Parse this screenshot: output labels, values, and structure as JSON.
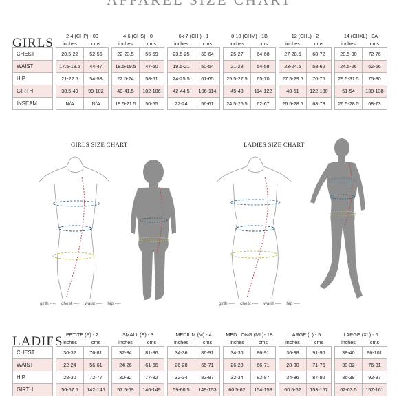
{
  "page_title": "APPAREL SIZE CHART",
  "units": {
    "inches": "inches",
    "cms": "cms"
  },
  "girls": {
    "label": "GIRLS",
    "sizes": [
      "2-4 (CHP) - 00",
      "4-6 (CHS) - 0",
      "6x-7 (CHI) - 1",
      "8-10 (CHM) - 1B",
      "12 (CHL) - 2",
      "14 (CHXL) - 3A"
    ],
    "rows": [
      {
        "label": "CHEST",
        "values": [
          [
            "20.5-22",
            "52-55"
          ],
          [
            "22-23.5",
            "56-59"
          ],
          [
            "23.5-25",
            "60-64"
          ],
          [
            "25-27",
            "64-68"
          ],
          [
            "27-28.5",
            "68-72"
          ],
          [
            "28.5-30",
            "72-76"
          ]
        ]
      },
      {
        "label": "WAIST",
        "values": [
          [
            "17.5-18.5",
            "44-47"
          ],
          [
            "18.5-19.5",
            "47-50"
          ],
          [
            "19.5-21",
            "50-54"
          ],
          [
            "21-23",
            "54-58"
          ],
          [
            "23-24.5",
            "58-62"
          ],
          [
            "24.5-26",
            "62-66"
          ]
        ]
      },
      {
        "label": "HIP",
        "values": [
          [
            "21-22.5",
            "54-58"
          ],
          [
            "22.5-24",
            "58-61"
          ],
          [
            "24-25.5",
            "61-65"
          ],
          [
            "25.5-27.5",
            "65-70"
          ],
          [
            "27.5-29.5",
            "70-75"
          ],
          [
            "29.5-31.5",
            "75-80"
          ]
        ]
      },
      {
        "label": "GIRTH",
        "values": [
          [
            "38.5-40",
            "99-102"
          ],
          [
            "40-41.5",
            "102-106"
          ],
          [
            "42-44.5",
            "106-114"
          ],
          [
            "45-48",
            "114-122"
          ],
          [
            "48-51",
            "122-130"
          ],
          [
            "51-54",
            "130-138"
          ]
        ]
      },
      {
        "label": "INSEAM",
        "values": [
          [
            "N/A",
            "N/A"
          ],
          [
            "19.5-21.5",
            "50-55"
          ],
          [
            "22-24",
            "56-61"
          ],
          [
            "24.5-26.5",
            "62-67"
          ],
          [
            "26.5-28.5",
            "68-73"
          ],
          [
            "26.5-28.5",
            "68-73"
          ]
        ]
      }
    ]
  },
  "diagrams": {
    "girls_title": "GIRLS SIZE CHART",
    "ladies_title": "LADIES SIZE CHART",
    "legend": [
      "girth ----",
      "chest ----",
      "waist ----",
      "hip ----"
    ],
    "colors": {
      "girth": "#b04a4a",
      "chest": "#4a7ba0",
      "waist": "#2f5f7a",
      "hip": "#c9c26a",
      "silhouette": "#8f8f8f",
      "outline": "#9a9a9a"
    }
  },
  "ladies": {
    "label": "LADIES",
    "sizes": [
      "PETITE (P) - 2",
      "SMALL (S) - 3",
      "MEDIUM (M) - 4",
      "MED LONG (ML)- 1B",
      "LARGE (L) - 5",
      "LARGE (XL) - 6"
    ],
    "rows": [
      {
        "label": "CHEST",
        "values": [
          [
            "30-32",
            "76-81"
          ],
          [
            "32-34",
            "81-86"
          ],
          [
            "34-36",
            "86-91"
          ],
          [
            "34-36",
            "86-91"
          ],
          [
            "36-38",
            "91-96"
          ],
          [
            "38-40",
            "96-101"
          ]
        ]
      },
      {
        "label": "WAIST",
        "values": [
          [
            "22-24",
            "56-61"
          ],
          [
            "24-26",
            "61-66"
          ],
          [
            "26-28",
            "66-71"
          ],
          [
            "26-28",
            "66-71"
          ],
          [
            "28-30",
            "71-76"
          ],
          [
            "30-32",
            "76-81"
          ]
        ]
      },
      {
        "label": "HIP",
        "values": [
          [
            "28-30",
            "72-77"
          ],
          [
            "30-32",
            "77-82"
          ],
          [
            "32-34",
            "82-87"
          ],
          [
            "32-34",
            "82-87"
          ],
          [
            "34-36",
            "87-92"
          ],
          [
            "36-38",
            "92-97"
          ]
        ]
      },
      {
        "label": "GIRTH",
        "values": [
          [
            "56-57.5",
            "142-146"
          ],
          [
            "57.5-59",
            "146-149"
          ],
          [
            "59-60.5",
            "149-153"
          ],
          [
            "60.5-62",
            "154-158"
          ],
          [
            "60.5-62",
            "153-157"
          ],
          [
            "62-63.5",
            "157-161"
          ]
        ]
      }
    ]
  }
}
